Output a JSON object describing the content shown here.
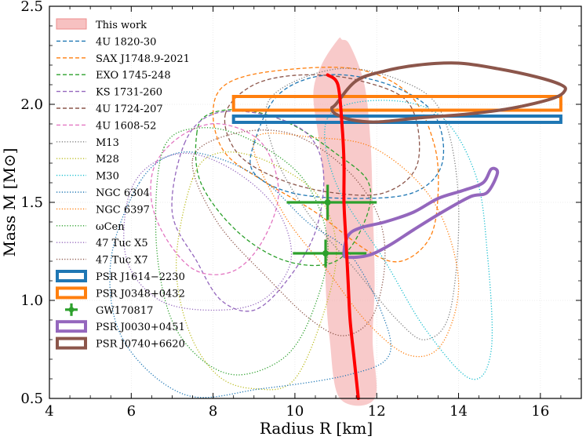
{
  "chart_data": {
    "type": "line",
    "xlabel": "Radius R [km]",
    "ylabel": "Mass M [M⊙]",
    "xlim": [
      4,
      17
    ],
    "ylim": [
      0.5,
      2.5
    ],
    "grid": true,
    "legend_position": "top-left",
    "x_ticks": [
      4,
      6,
      8,
      10,
      12,
      14,
      16
    ],
    "y_ticks": [
      0.5,
      1.0,
      1.5,
      2.0,
      2.5
    ],
    "x_tick_labels": [
      "4",
      "6",
      "8",
      "10",
      "12",
      "14",
      "16"
    ],
    "y_tick_labels": [
      "0.5",
      "1.0",
      "1.5",
      "2.0",
      "2.5"
    ],
    "this_work": {
      "band": {
        "left": [
          [
            11.1,
            0.5
          ],
          [
            10.85,
            0.8
          ],
          [
            10.75,
            1.1
          ],
          [
            10.75,
            1.5
          ],
          [
            10.6,
            1.8
          ],
          [
            10.45,
            2.05
          ],
          [
            10.65,
            2.2
          ],
          [
            11.05,
            2.33
          ]
        ],
        "right": [
          [
            11.15,
            2.33
          ],
          [
            11.35,
            2.3
          ],
          [
            11.7,
            2.1
          ],
          [
            11.85,
            1.8
          ],
          [
            11.9,
            1.5
          ],
          [
            11.95,
            1.1
          ],
          [
            11.9,
            0.8
          ],
          [
            11.95,
            0.5
          ]
        ]
      },
      "center": [
        [
          10.8,
          2.15
        ],
        [
          11.05,
          2.1
        ],
        [
          11.15,
          1.9
        ],
        [
          11.2,
          1.7
        ],
        [
          11.2,
          1.5
        ],
        [
          11.25,
          1.3
        ],
        [
          11.3,
          1.1
        ],
        [
          11.35,
          0.9
        ],
        [
          11.45,
          0.7
        ],
        [
          11.55,
          0.5
        ]
      ]
    },
    "series": [
      {
        "name": "4U 1820-30",
        "color": "#1f77b4",
        "style": "dashed",
        "kind": "contour",
        "points": [
          [
            9.0,
            1.8
          ],
          [
            9.6,
            2.05
          ],
          [
            10.8,
            2.15
          ],
          [
            12.3,
            2.1
          ],
          [
            13.4,
            1.95
          ],
          [
            13.6,
            1.7
          ],
          [
            12.9,
            1.55
          ],
          [
            11.4,
            1.52
          ],
          [
            9.9,
            1.55
          ],
          [
            9.0,
            1.65
          ]
        ]
      },
      {
        "name": "SAX J1748.9-2021",
        "color": "#ff7f0e",
        "style": "dashed",
        "kind": "contour",
        "points": [
          [
            8.0,
            1.95
          ],
          [
            8.3,
            2.1
          ],
          [
            9.5,
            2.17
          ],
          [
            11.5,
            2.18
          ],
          [
            12.8,
            2.05
          ],
          [
            13.4,
            1.8
          ],
          [
            13.5,
            1.55
          ],
          [
            13.3,
            1.32
          ],
          [
            12.6,
            1.2
          ],
          [
            11.8,
            1.25
          ],
          [
            10.5,
            1.45
          ],
          [
            9.3,
            1.6
          ],
          [
            8.3,
            1.75
          ]
        ]
      },
      {
        "name": "EXO 1745-248",
        "color": "#2ca02c",
        "style": "dashed",
        "kind": "contour",
        "points": [
          [
            7.6,
            1.85
          ],
          [
            7.9,
            1.95
          ],
          [
            8.8,
            1.97
          ],
          [
            9.9,
            1.9
          ],
          [
            11.0,
            1.75
          ],
          [
            11.8,
            1.6
          ],
          [
            11.7,
            1.4
          ],
          [
            11.0,
            1.2
          ],
          [
            9.8,
            1.2
          ],
          [
            8.6,
            1.35
          ],
          [
            7.7,
            1.6
          ]
        ]
      },
      {
        "name": "KS 1731-260",
        "color": "#9467bd",
        "style": "dashed",
        "kind": "contour",
        "points": [
          [
            7.3,
            1.8
          ],
          [
            8.0,
            1.95
          ],
          [
            9.2,
            1.95
          ],
          [
            10.3,
            1.85
          ],
          [
            10.7,
            1.65
          ],
          [
            10.5,
            1.35
          ],
          [
            9.8,
            1.1
          ],
          [
            9.0,
            0.95
          ],
          [
            8.2,
            1.0
          ],
          [
            7.6,
            1.2
          ],
          [
            7.0,
            1.45
          ]
        ]
      },
      {
        "name": "4U 1724-207",
        "color": "#8c564b",
        "style": "dashed",
        "kind": "contour",
        "points": [
          [
            8.3,
            1.95
          ],
          [
            9.0,
            2.1
          ],
          [
            10.2,
            2.15
          ],
          [
            11.6,
            2.12
          ],
          [
            12.8,
            2.0
          ],
          [
            13.0,
            1.7
          ],
          [
            12.2,
            1.55
          ],
          [
            10.9,
            1.55
          ],
          [
            9.6,
            1.62
          ],
          [
            8.6,
            1.75
          ]
        ]
      },
      {
        "name": "4U 1608-52",
        "color": "#e377c2",
        "style": "dashed",
        "kind": "contour",
        "points": [
          [
            6.6,
            1.7
          ],
          [
            7.3,
            1.85
          ],
          [
            8.2,
            1.9
          ],
          [
            9.2,
            1.8
          ],
          [
            9.6,
            1.55
          ],
          [
            9.2,
            1.3
          ],
          [
            8.5,
            1.15
          ],
          [
            7.6,
            1.15
          ],
          [
            6.9,
            1.3
          ],
          [
            6.5,
            1.5
          ]
        ]
      },
      {
        "name": "M13",
        "color": "#7f7f7f",
        "style": "dotted",
        "kind": "contour",
        "points": [
          [
            9.4,
            2.03
          ],
          [
            11.0,
            2.18
          ],
          [
            12.6,
            2.12
          ],
          [
            13.6,
            1.95
          ],
          [
            14.0,
            1.5
          ],
          [
            13.8,
            0.95
          ],
          [
            13.2,
            0.8
          ],
          [
            12.5,
            0.9
          ],
          [
            11.5,
            1.15
          ],
          [
            10.3,
            1.45
          ],
          [
            9.5,
            1.75
          ]
        ]
      },
      {
        "name": "M28",
        "color": "#bcbd22",
        "style": "dotted",
        "kind": "contour",
        "points": [
          [
            7.5,
            1.62
          ],
          [
            8.1,
            1.75
          ],
          [
            9.2,
            1.72
          ],
          [
            10.5,
            1.55
          ],
          [
            11.0,
            1.3
          ],
          [
            10.8,
            1.0
          ],
          [
            10.0,
            0.6
          ],
          [
            9.0,
            0.55
          ],
          [
            8.1,
            0.62
          ],
          [
            7.4,
            0.85
          ],
          [
            7.1,
            1.2
          ]
        ]
      },
      {
        "name": "M30",
        "color": "#17becf",
        "style": "dotted",
        "kind": "contour",
        "points": [
          [
            10.8,
            1.93
          ],
          [
            12.0,
            2.02
          ],
          [
            13.5,
            1.95
          ],
          [
            14.4,
            1.65
          ],
          [
            14.7,
            1.25
          ],
          [
            14.8,
            0.75
          ],
          [
            14.3,
            0.6
          ],
          [
            13.2,
            0.85
          ],
          [
            12.2,
            1.2
          ],
          [
            11.0,
            1.6
          ]
        ]
      },
      {
        "name": "NGC 6304",
        "color": "#1f77b4",
        "style": "dotted",
        "kind": "contour",
        "points": [
          [
            6.2,
            1.6
          ],
          [
            7.1,
            1.75
          ],
          [
            8.2,
            1.72
          ],
          [
            9.3,
            1.6
          ],
          [
            10.3,
            1.4
          ],
          [
            11.3,
            1.25
          ],
          [
            12.1,
            0.95
          ],
          [
            12.3,
            0.72
          ],
          [
            11.3,
            0.62
          ],
          [
            9.2,
            0.55
          ],
          [
            7.3,
            0.52
          ],
          [
            5.8,
            0.8
          ],
          [
            5.5,
            1.2
          ]
        ]
      },
      {
        "name": "NGC 6397",
        "color": "#ff7f0e",
        "style": "dotted",
        "kind": "contour",
        "points": [
          [
            9.0,
            1.82
          ],
          [
            10.5,
            1.83
          ],
          [
            12.0,
            1.77
          ],
          [
            13.4,
            1.5
          ],
          [
            14.0,
            1.1
          ],
          [
            13.6,
            0.78
          ],
          [
            12.8,
            0.72
          ],
          [
            11.8,
            0.88
          ],
          [
            10.8,
            1.15
          ],
          [
            9.7,
            1.45
          ]
        ]
      },
      {
        "name": "ωCen",
        "color": "#2ca02c",
        "style": "dotted",
        "kind": "contour",
        "points": [
          [
            6.8,
            1.78
          ],
          [
            7.7,
            1.88
          ],
          [
            8.9,
            1.82
          ],
          [
            10.2,
            1.62
          ],
          [
            10.8,
            1.3
          ],
          [
            10.5,
            0.98
          ],
          [
            9.8,
            0.72
          ],
          [
            8.6,
            0.62
          ],
          [
            7.6,
            0.72
          ],
          [
            6.9,
            0.95
          ],
          [
            6.6,
            1.35
          ]
        ]
      },
      {
        "name": "47 Tuc X5",
        "color": "#9467bd",
        "style": "dotted",
        "kind": "contour",
        "points": [
          [
            5.9,
            1.5
          ],
          [
            6.4,
            1.68
          ],
          [
            7.4,
            1.75
          ],
          [
            8.6,
            1.65
          ],
          [
            9.6,
            1.45
          ],
          [
            9.9,
            1.2
          ],
          [
            9.2,
            1.0
          ],
          [
            8.0,
            0.95
          ],
          [
            6.7,
            1.0
          ],
          [
            5.9,
            1.2
          ]
        ]
      },
      {
        "name": "47 Tuc X7",
        "color": "#8c564b",
        "style": "dotted",
        "kind": "contour",
        "points": [
          [
            7.5,
            1.72
          ],
          [
            8.5,
            1.85
          ],
          [
            9.9,
            1.85
          ],
          [
            11.2,
            1.68
          ],
          [
            12.0,
            1.45
          ],
          [
            12.2,
            1.2
          ],
          [
            11.9,
            0.92
          ],
          [
            11.2,
            0.82
          ],
          [
            10.4,
            0.9
          ],
          [
            9.4,
            1.1
          ],
          [
            8.1,
            1.4
          ]
        ]
      },
      {
        "name": "PSR J1614−2230",
        "color": "#1f77b4",
        "style": "solid-box",
        "kind": "box",
        "points": [
          [
            8.5,
            1.908
          ],
          [
            16.5,
            1.908
          ],
          [
            16.5,
            1.94
          ],
          [
            8.5,
            1.94
          ]
        ]
      },
      {
        "name": "PSR J0348+0432",
        "color": "#ff7f0e",
        "style": "solid-box",
        "kind": "box",
        "points": [
          [
            8.5,
            1.97
          ],
          [
            16.5,
            1.97
          ],
          [
            16.5,
            2.04
          ],
          [
            8.5,
            2.04
          ]
        ]
      },
      {
        "name": "GW170817",
        "color": "#2ca02c",
        "style": "errorbar",
        "kind": "errorbar",
        "points": [
          [
            10.8,
            1.5,
            1.0,
            1.2,
            0.09
          ],
          [
            10.75,
            1.24,
            0.8,
            1.0,
            0.07
          ]
        ]
      },
      {
        "name": "PSR J0030+0451",
        "color": "#9467bd",
        "style": "solid-thick",
        "kind": "contour",
        "points": [
          [
            11.2,
            1.24
          ],
          [
            11.3,
            1.33
          ],
          [
            11.6,
            1.37
          ],
          [
            12.2,
            1.4
          ],
          [
            12.9,
            1.45
          ],
          [
            13.5,
            1.52
          ],
          [
            14.1,
            1.56
          ],
          [
            14.6,
            1.6
          ],
          [
            14.8,
            1.67
          ],
          [
            14.95,
            1.65
          ],
          [
            14.7,
            1.55
          ],
          [
            14.3,
            1.53
          ],
          [
            13.6,
            1.45
          ],
          [
            12.9,
            1.36
          ],
          [
            12.3,
            1.28
          ],
          [
            11.8,
            1.23
          ],
          [
            11.3,
            1.22
          ]
        ]
      },
      {
        "name": "PSR J0740+6620",
        "color": "#8c564b",
        "style": "solid-thick",
        "kind": "contour",
        "points": [
          [
            11.0,
            2.0
          ],
          [
            11.5,
            2.12
          ],
          [
            12.2,
            2.17
          ],
          [
            13.0,
            2.2
          ],
          [
            14.0,
            2.21
          ],
          [
            15.0,
            2.18
          ],
          [
            15.9,
            2.14
          ],
          [
            16.5,
            2.1
          ],
          [
            16.6,
            2.07
          ],
          [
            16.3,
            2.03
          ],
          [
            15.3,
            1.98
          ],
          [
            14.2,
            1.95
          ],
          [
            13.0,
            1.93
          ],
          [
            12.0,
            1.91
          ],
          [
            11.4,
            1.92
          ],
          [
            11.0,
            1.95
          ],
          [
            10.9,
            1.98
          ]
        ]
      }
    ],
    "legend": [
      {
        "label": "This work",
        "marker": "band",
        "color": "#f08080"
      },
      {
        "label": "4U 1820-30",
        "marker": "dashed",
        "color": "#1f77b4"
      },
      {
        "label": "SAX J1748.9-2021",
        "marker": "dashed",
        "color": "#ff7f0e"
      },
      {
        "label": "EXO 1745-248",
        "marker": "dashed",
        "color": "#2ca02c"
      },
      {
        "label": "KS 1731-260",
        "marker": "dashed",
        "color": "#9467bd"
      },
      {
        "label": "4U 1724-207",
        "marker": "dashed",
        "color": "#8c564b"
      },
      {
        "label": "4U 1608-52",
        "marker": "dashed",
        "color": "#e377c2"
      },
      {
        "label": "M13",
        "marker": "dotted",
        "color": "#7f7f7f"
      },
      {
        "label": "M28",
        "marker": "dotted",
        "color": "#bcbd22"
      },
      {
        "label": "M30",
        "marker": "dotted",
        "color": "#17becf"
      },
      {
        "label": "NGC 6304",
        "marker": "dotted",
        "color": "#1f77b4"
      },
      {
        "label": "NGC 6397",
        "marker": "dotted",
        "color": "#ff7f0e"
      },
      {
        "label": "ωCen",
        "marker": "dotted",
        "color": "#2ca02c"
      },
      {
        "label": "47 Tuc X5",
        "marker": "dotted",
        "color": "#9467bd"
      },
      {
        "label": "47 Tuc X7",
        "marker": "dotted",
        "color": "#8c564b"
      },
      {
        "label": "PSR J1614−2230",
        "marker": "box",
        "color": "#1f77b4"
      },
      {
        "label": "PSR J0348+0432",
        "marker": "box",
        "color": "#ff7f0e"
      },
      {
        "label": "GW170817",
        "marker": "errorbar",
        "color": "#2ca02c"
      },
      {
        "label": "PSR J0030+0451",
        "marker": "box",
        "color": "#9467bd"
      },
      {
        "label": "PSR J0740+6620",
        "marker": "box",
        "color": "#8c564b"
      }
    ]
  }
}
